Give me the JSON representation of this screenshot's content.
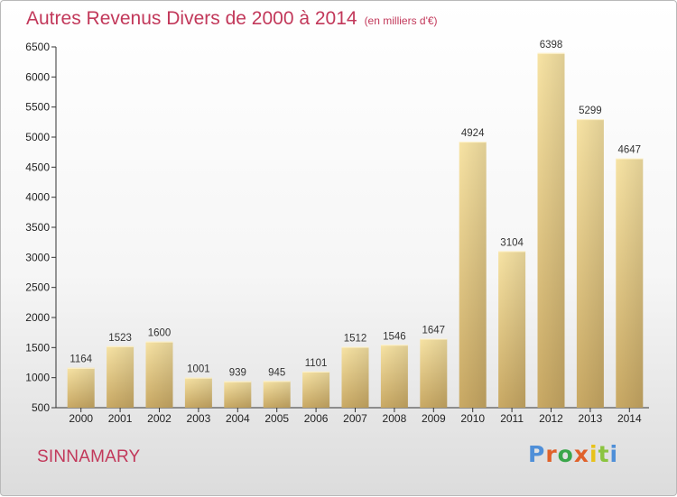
{
  "header": {
    "title": "Autres Revenus Divers de 2000 à 2014",
    "unit_note": "(en milliers d'€)"
  },
  "footer": {
    "location": "SINNAMARY",
    "brand": "Proxiti"
  },
  "colors": {
    "title": "#c2385a",
    "bar_light": "#f7e3a4",
    "bar_dark": "#c9a964",
    "brand_letters": [
      "#4f8fd8",
      "#e0612a",
      "#3aa64a",
      "#e0612a",
      "#e8c21a",
      "#8bc43f",
      "#4f8fd8"
    ]
  },
  "chart_data": {
    "type": "bar",
    "title": "Autres Revenus Divers de 2000 à 2014",
    "ylabel": "",
    "xlabel": "",
    "categories": [
      "2000",
      "2001",
      "2002",
      "2003",
      "2004",
      "2005",
      "2006",
      "2007",
      "2008",
      "2009",
      "2010",
      "2011",
      "2012",
      "2013",
      "2014"
    ],
    "values": [
      1164,
      1523,
      1600,
      1001,
      939,
      945,
      1101,
      1512,
      1546,
      1647,
      4924,
      3104,
      6398,
      5299,
      4647
    ],
    "ylim": [
      500,
      6500
    ],
    "yticks": [
      500,
      1000,
      1500,
      2000,
      2500,
      3000,
      3500,
      4000,
      4500,
      5000,
      5500,
      6000,
      6500
    ],
    "grid": false,
    "legend": "none"
  }
}
